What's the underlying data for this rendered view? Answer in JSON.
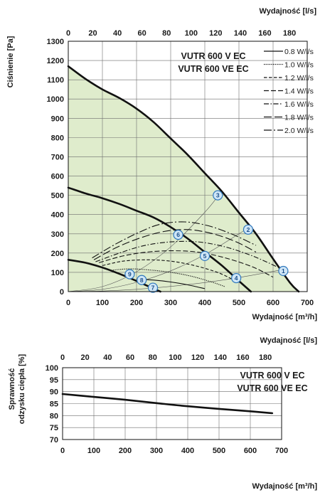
{
  "colors": {
    "fill": "#dfeccc",
    "grid": "#6d6d6d",
    "curve": "#111111",
    "point_stroke": "#2e77bd",
    "point_fill": "#cfe6f7",
    "point_text": "#1b4f8a"
  },
  "chart_data": [
    {
      "type": "line",
      "title": "",
      "models": [
        "VUTR 600 V EC",
        "VUTR 600 VE EC"
      ],
      "xlabel": "Wydajność [m³/h]",
      "x2label": "Wydajność [l/s]",
      "ylabel": "Ciśnienie [Pa]",
      "xlim": [
        0,
        700
      ],
      "x2lim": [
        0,
        194.44
      ],
      "ylim": [
        0,
        1300
      ],
      "xticks": [
        "0",
        "100",
        "200",
        "300",
        "400",
        "500",
        "600",
        "700"
      ],
      "x2ticks": [
        "0",
        "20",
        "40",
        "60",
        "80",
        "100",
        "120",
        "140",
        "160",
        "180"
      ],
      "yticks": [
        "0",
        "100",
        "200",
        "300",
        "400",
        "500",
        "600",
        "700",
        "800",
        "900",
        "1000",
        "1100",
        "1200",
        "1300"
      ],
      "fan_curves": [
        {
          "x": [
            0,
            50,
            100,
            150,
            200,
            250,
            300,
            350,
            400,
            450,
            500,
            550,
            600,
            650,
            675
          ],
          "y": [
            1170,
            1105,
            1050,
            1005,
            950,
            880,
            795,
            710,
            615,
            520,
            410,
            300,
            170,
            45,
            0
          ]
        },
        {
          "x": [
            0,
            50,
            100,
            150,
            200,
            250,
            300,
            350,
            400,
            450,
            500,
            535
          ],
          "y": [
            540,
            510,
            485,
            455,
            420,
            385,
            335,
            275,
            205,
            135,
            55,
            0
          ]
        },
        {
          "x": [
            0,
            50,
            100,
            150,
            200,
            250,
            270
          ],
          "y": [
            165,
            150,
            125,
            92,
            55,
            15,
            0
          ]
        }
      ],
      "legend": [
        {
          "label": "0.8 W/l/s",
          "dash": ""
        },
        {
          "label": "1.0 W/l/s",
          "dash": "1.3 1.3"
        },
        {
          "label": "1.2 W/l/s",
          "dash": "4.5 2.5"
        },
        {
          "label": "1.4 W/l/s",
          "dash": "7 3"
        },
        {
          "label": "1.6 W/l/s",
          "dash": "7 2.5 1.5 2.5"
        },
        {
          "label": "1.8 W/l/s",
          "dash": "11 4"
        },
        {
          "label": "2.0 W/l/s",
          "dash": "11 3 2 3"
        }
      ],
      "power_curves": [
        {
          "name": "0.8 W/l/s",
          "dash": "",
          "x": [
            200,
            250,
            300,
            350,
            400
          ],
          "y": [
            65,
            60,
            50,
            35,
            15
          ]
        },
        {
          "name": "1.0 W/l/s",
          "dash": "1.3 1.3",
          "x": [
            120,
            180,
            240,
            300,
            360,
            420,
            460
          ],
          "y": [
            110,
            118,
            112,
            100,
            80,
            50,
            25
          ]
        },
        {
          "name": "1.2 W/l/s",
          "dash": "4.5 2.5",
          "x": [
            100,
            160,
            230,
            300,
            370,
            440,
            490
          ],
          "y": [
            135,
            158,
            165,
            158,
            135,
            98,
            55
          ]
        },
        {
          "name": "1.4 W/l/s",
          "dash": "7 3",
          "x": [
            90,
            160,
            230,
            300,
            380,
            460,
            540,
            600
          ],
          "y": [
            150,
            185,
            205,
            212,
            205,
            175,
            128,
            75
          ]
        },
        {
          "name": "1.6 W/l/s",
          "dash": "7 2.5 1.5 2.5",
          "x": [
            80,
            150,
            220,
            300,
            380,
            460,
            540,
            610
          ],
          "y": [
            155,
            200,
            238,
            258,
            258,
            232,
            185,
            130
          ]
        },
        {
          "name": "1.8 W/l/s",
          "dash": "11 4",
          "x": [
            75,
            140,
            210,
            280,
            350,
            420,
            490,
            550
          ],
          "y": [
            165,
            228,
            278,
            312,
            322,
            302,
            260,
            205
          ]
        },
        {
          "name": "2.0 W/l/s",
          "dash": "11 3 2 3",
          "x": [
            70,
            140,
            210,
            270,
            340,
            410,
            480,
            550
          ],
          "y": [
            175,
            248,
            310,
            350,
            362,
            342,
            298,
            240
          ]
        }
      ],
      "system_curves": [
        {
          "x": [
            0,
            100,
            200,
            300,
            400,
            500,
            600,
            630
          ],
          "y": [
            0,
            3,
            12,
            27,
            47,
            73,
            105,
            116
          ]
        },
        {
          "x": [
            0,
            100,
            200,
            300,
            400,
            500,
            527
          ],
          "y": [
            0,
            12,
            48,
            108,
            192,
            300,
            333
          ]
        },
        {
          "x": [
            0,
            100,
            200,
            300,
            400,
            440
          ],
          "y": [
            0,
            26,
            103,
            232,
            412,
            499
          ]
        }
      ],
      "points": [
        {
          "label": "1",
          "x": 630,
          "y": 107
        },
        {
          "label": "2",
          "x": 527,
          "y": 322
        },
        {
          "label": "3",
          "x": 438,
          "y": 500
        },
        {
          "label": "4",
          "x": 492,
          "y": 70
        },
        {
          "label": "5",
          "x": 400,
          "y": 185
        },
        {
          "label": "6",
          "x": 322,
          "y": 295
        },
        {
          "label": "7",
          "x": 248,
          "y": 20
        },
        {
          "label": "8",
          "x": 215,
          "y": 60
        },
        {
          "label": "9",
          "x": 180,
          "y": 90
        }
      ]
    },
    {
      "type": "line",
      "title": "",
      "models": [
        "VUTR 600 V EC",
        "VUTR 600 VE EC"
      ],
      "xlabel": "Wydajność [m³/h]",
      "x2label": "Wydajność [l/s]",
      "ylabel_lines": [
        "Sprawność",
        "odzysku ciepła [%]"
      ],
      "xlim": [
        0,
        700
      ],
      "x2lim": [
        0,
        194.44
      ],
      "ylim": [
        70,
        100
      ],
      "xticks": [
        "0",
        "100",
        "200",
        "300",
        "400",
        "500",
        "600",
        "700"
      ],
      "x2ticks": [
        "0",
        "20",
        "40",
        "60",
        "80",
        "100",
        "120",
        "140",
        "160",
        "180"
      ],
      "yticks": [
        "70",
        "75",
        "80",
        "85",
        "90",
        "95",
        "100"
      ],
      "series": [
        {
          "x": [
            0,
            100,
            200,
            300,
            400,
            500,
            600,
            670
          ],
          "y": [
            89,
            87.8,
            86.6,
            85.2,
            83.9,
            82.8,
            81.8,
            81
          ]
        }
      ]
    }
  ]
}
